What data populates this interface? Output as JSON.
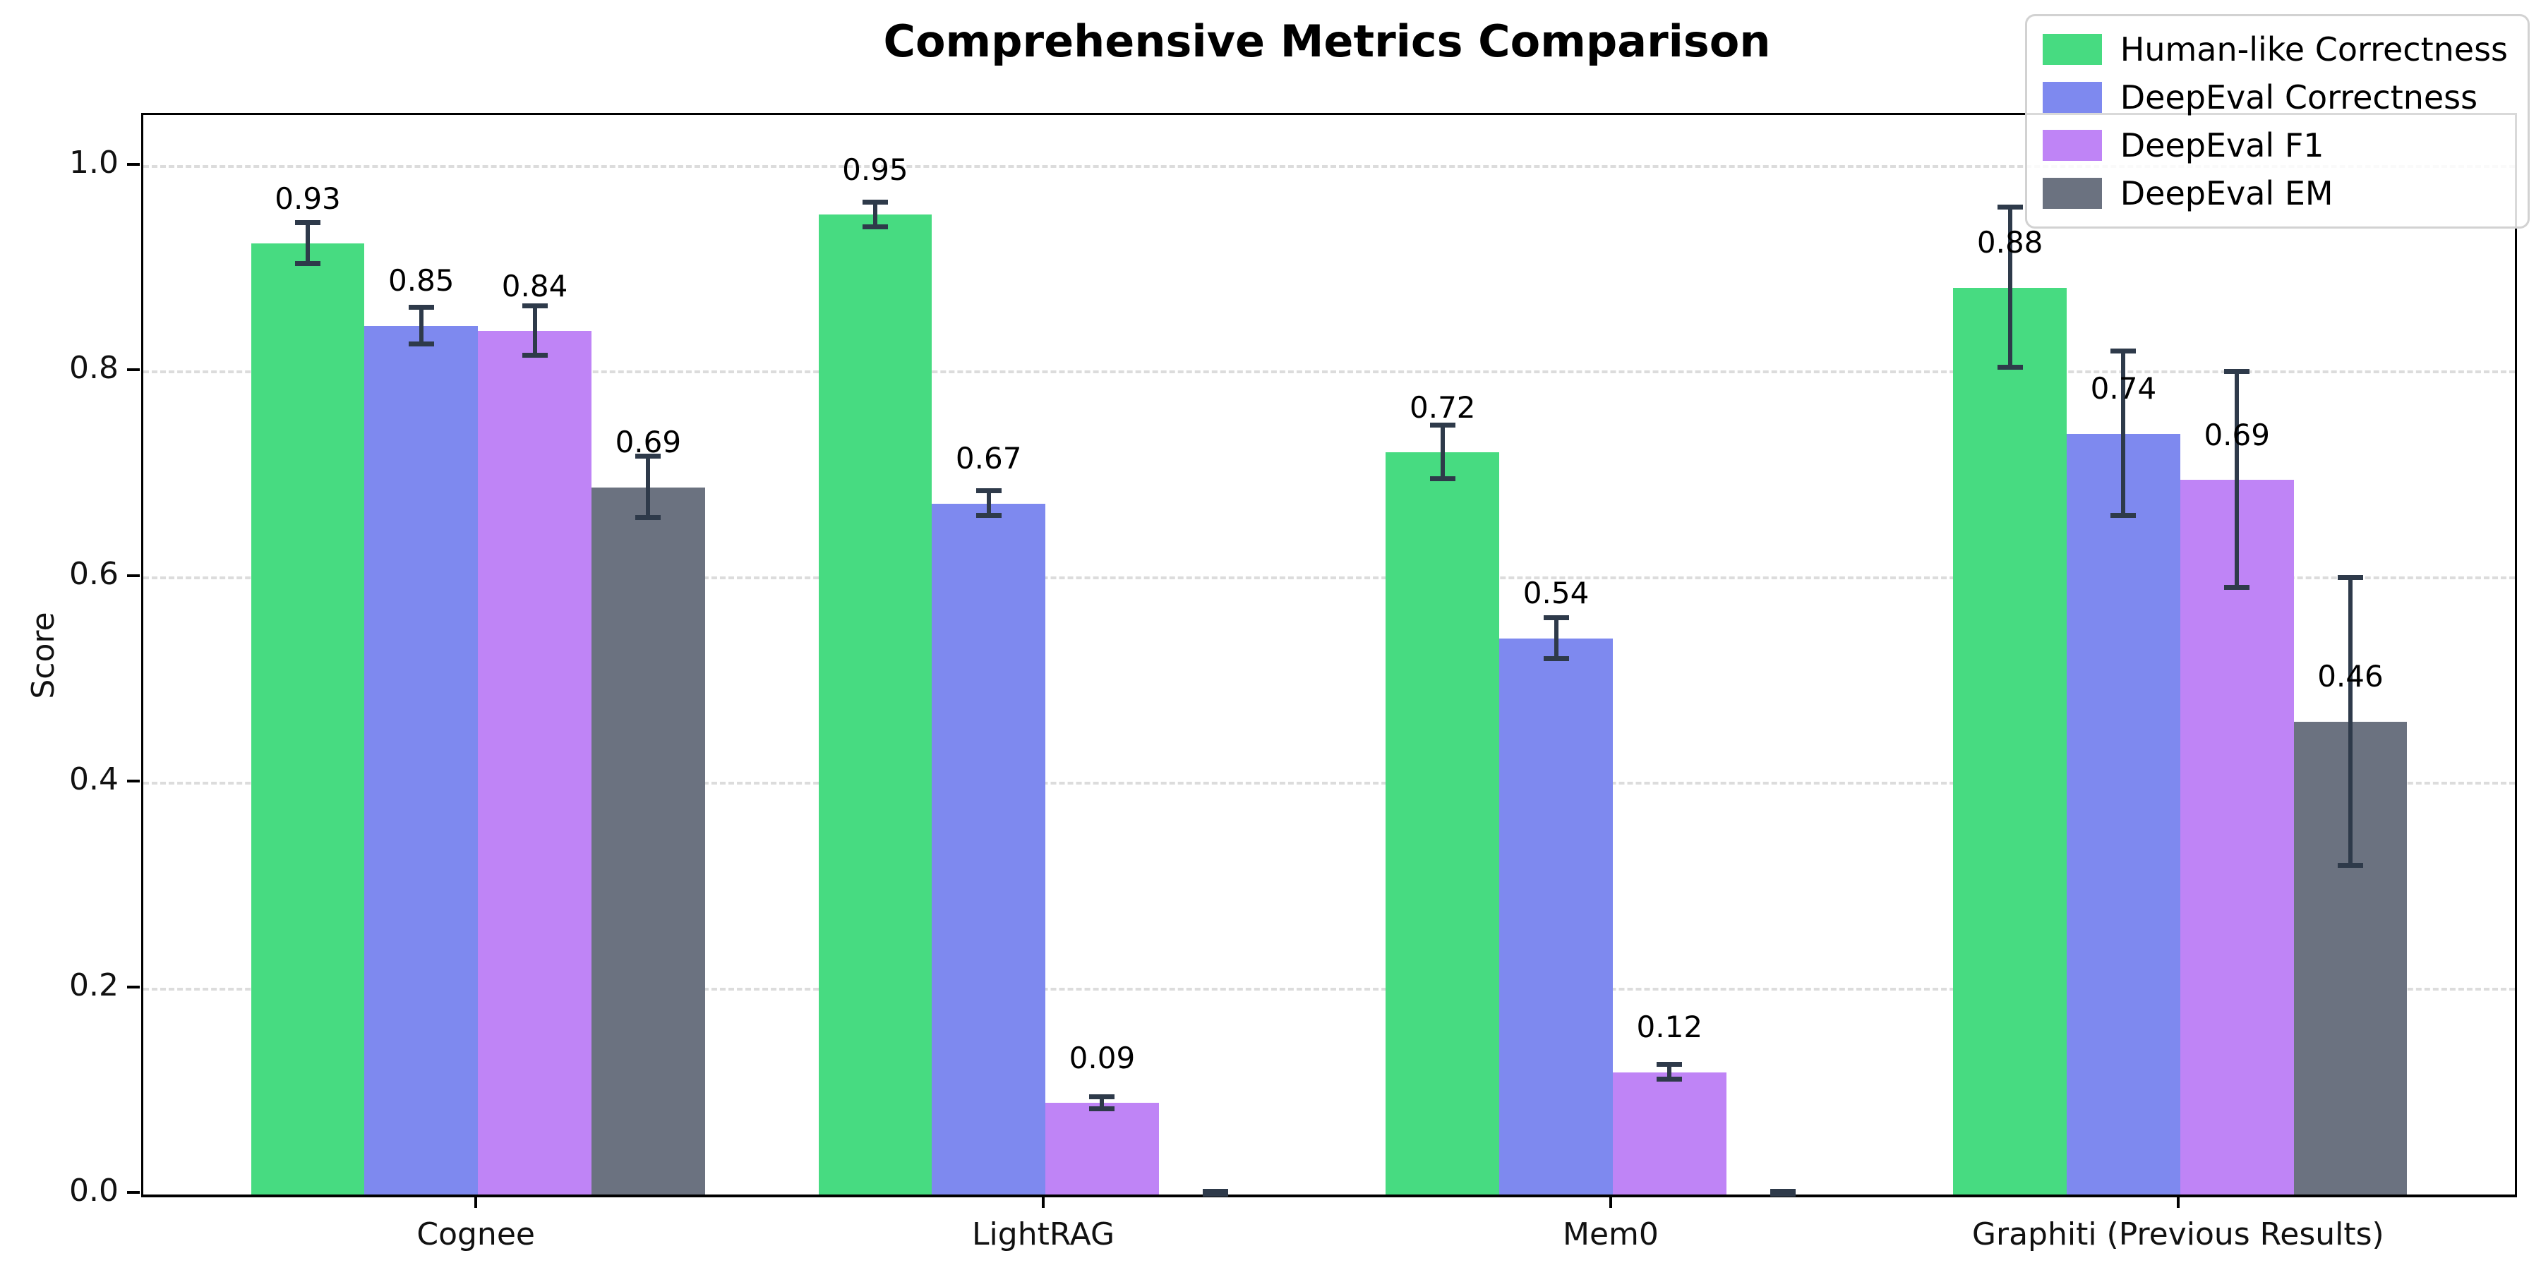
{
  "chart_data": {
    "type": "bar",
    "title": "Comprehensive Metrics Comparison",
    "xlabel": "",
    "ylabel": "Score",
    "ylim": [
      0,
      1.05
    ],
    "yticks": [
      "0.0",
      "0.2",
      "0.4",
      "0.6",
      "0.8",
      "1.0"
    ],
    "grid": "horizontal dashed",
    "legend_position": "upper right",
    "categories": [
      "Cognee",
      "LightRAG",
      "Mem0",
      "Graphiti (Previous Results)"
    ],
    "series": [
      {
        "name": "Human-like Correctness",
        "color": "#47db81",
        "values": [
          0.925,
          0.953,
          0.722,
          0.882
        ],
        "errors": [
          0.02,
          0.012,
          0.026,
          0.078
        ],
        "labels": [
          "0.93",
          "0.95",
          "0.72",
          "0.88"
        ]
      },
      {
        "name": "DeepEval Correctness",
        "color": "#7e89ef",
        "values": [
          0.845,
          0.672,
          0.541,
          0.74
        ],
        "errors": [
          0.018,
          0.012,
          0.02,
          0.08
        ],
        "labels": [
          "0.85",
          "0.67",
          "0.54",
          "0.74"
        ]
      },
      {
        "name": "DeepEval F1",
        "color": "#bf84f6",
        "values": [
          0.84,
          0.089,
          0.119,
          0.695
        ],
        "errors": [
          0.024,
          0.006,
          0.007,
          0.105
        ],
        "labels": [
          "0.84",
          "0.09",
          "0.12",
          "0.69"
        ]
      },
      {
        "name": "DeepEval EM",
        "color": "#6b7280",
        "values": [
          0.688,
          0.0,
          0.0,
          0.46
        ],
        "errors": [
          0.03,
          0.003,
          0.003,
          0.14
        ],
        "labels": [
          "0.69",
          null,
          null,
          "0.46"
        ]
      }
    ],
    "colors": {
      "error_bar": "#2e3a4a",
      "grid": "#dcdcdc",
      "axis": "#000000",
      "legend_border": "#d2d2d2",
      "background": "#ffffff"
    }
  }
}
